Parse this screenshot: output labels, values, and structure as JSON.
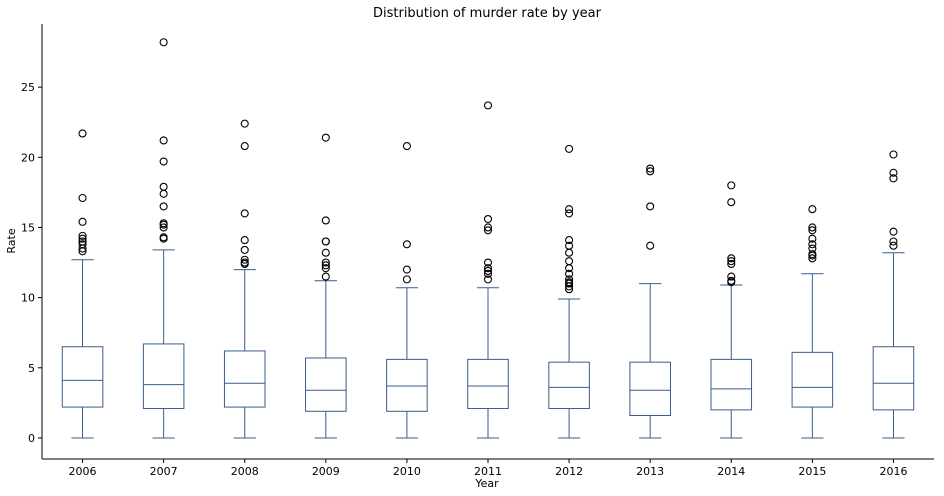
{
  "chart_data": {
    "type": "box",
    "title": "Distribution of murder rate by year",
    "xlabel": "Year",
    "ylabel": "Rate",
    "ylim": [
      -1.5,
      29.5
    ],
    "yticks": [
      0,
      5,
      10,
      15,
      20,
      25
    ],
    "grid": false,
    "box_color": "#3b5b92",
    "outlier_color": "#000000",
    "categories": [
      "2006",
      "2007",
      "2008",
      "2009",
      "2010",
      "2011",
      "2012",
      "2013",
      "2014",
      "2015",
      "2016"
    ],
    "boxes": [
      {
        "label": "2006",
        "whislo": 0,
        "q1": 2.2,
        "med": 4.1,
        "q3": 6.5,
        "whishi": 12.7,
        "fliers": [
          13.3,
          13.5,
          13.8,
          14.0,
          14.2,
          14.4,
          15.4,
          17.1,
          21.7
        ]
      },
      {
        "label": "2007",
        "whislo": 0,
        "q1": 2.1,
        "med": 3.8,
        "q3": 6.7,
        "whishi": 13.4,
        "fliers": [
          14.2,
          14.3,
          15.0,
          15.2,
          15.3,
          16.5,
          17.4,
          17.9,
          19.7,
          21.2,
          28.2
        ]
      },
      {
        "label": "2008",
        "whislo": 0,
        "q1": 2.2,
        "med": 3.9,
        "q3": 6.2,
        "whishi": 12.0,
        "fliers": [
          12.4,
          12.5,
          12.7,
          13.4,
          14.1,
          16.0,
          20.8,
          22.4
        ]
      },
      {
        "label": "2009",
        "whislo": 0,
        "q1": 1.9,
        "med": 3.4,
        "q3": 5.7,
        "whishi": 11.2,
        "fliers": [
          11.5,
          12.1,
          12.3,
          12.5,
          13.2,
          14.0,
          14.0,
          15.5,
          21.4
        ]
      },
      {
        "label": "2010",
        "whislo": 0,
        "q1": 1.9,
        "med": 3.7,
        "q3": 5.6,
        "whishi": 10.7,
        "fliers": [
          11.3,
          12.0,
          13.8,
          20.8
        ]
      },
      {
        "label": "2011",
        "whislo": 0,
        "q1": 2.1,
        "med": 3.7,
        "q3": 5.6,
        "whishi": 10.7,
        "fliers": [
          11.3,
          11.7,
          11.9,
          12.1,
          12.5,
          14.8,
          15.0,
          15.6,
          23.7
        ]
      },
      {
        "label": "2012",
        "whislo": 0,
        "q1": 2.1,
        "med": 3.6,
        "q3": 5.4,
        "whishi": 9.9,
        "fliers": [
          10.6,
          10.8,
          11.0,
          11.1,
          11.3,
          11.7,
          12.1,
          12.6,
          13.2,
          13.7,
          14.1,
          16.0,
          16.3,
          20.6
        ]
      },
      {
        "label": "2013",
        "whislo": 0,
        "q1": 1.6,
        "med": 3.4,
        "q3": 5.4,
        "whishi": 11.0,
        "fliers": [
          13.7,
          16.5,
          19.0,
          19.2
        ]
      },
      {
        "label": "2014",
        "whislo": 0,
        "q1": 2.0,
        "med": 3.5,
        "q3": 5.6,
        "whishi": 10.9,
        "fliers": [
          11.1,
          11.2,
          11.5,
          12.4,
          12.6,
          12.8,
          16.8,
          18.0
        ]
      },
      {
        "label": "2015",
        "whislo": 0,
        "q1": 2.2,
        "med": 3.6,
        "q3": 6.1,
        "whishi": 11.7,
        "fliers": [
          12.8,
          13.0,
          13.1,
          13.5,
          13.8,
          14.2,
          14.8,
          15.0,
          16.3
        ]
      },
      {
        "label": "2016",
        "whislo": 0,
        "q1": 2.0,
        "med": 3.9,
        "q3": 6.5,
        "whishi": 13.2,
        "fliers": [
          13.7,
          14.0,
          14.7,
          18.5,
          18.9,
          20.2
        ]
      }
    ]
  }
}
